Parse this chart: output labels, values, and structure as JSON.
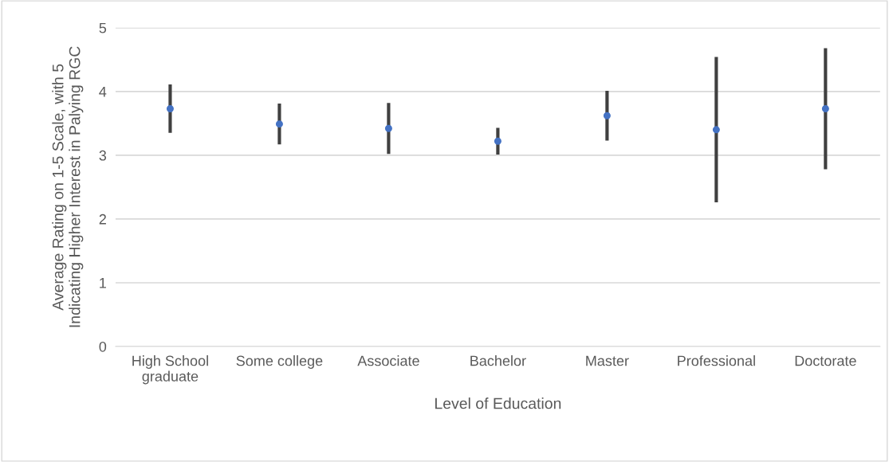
{
  "chart_data": {
    "type": "scatter",
    "xlabel": "Level of Education",
    "ylabel": "Average Rating on 1-5 Scale, with 5 Indicating Higher Interest in Palying RGC",
    "categories": [
      "High School graduate",
      "Some college",
      "Associate",
      "Bachelor",
      "Master",
      "Professional",
      "Doctorate"
    ],
    "values": [
      3.73,
      3.49,
      3.42,
      3.22,
      3.62,
      3.4,
      3.73
    ],
    "errors": [
      0.38,
      0.32,
      0.4,
      0.21,
      0.39,
      1.14,
      0.95
    ],
    "color": "#4472c4",
    "marker": "circle",
    "ylim": [
      0,
      5
    ],
    "yticks": [
      0,
      1,
      2,
      3,
      4,
      5
    ],
    "grid": "y",
    "legend": false
  }
}
